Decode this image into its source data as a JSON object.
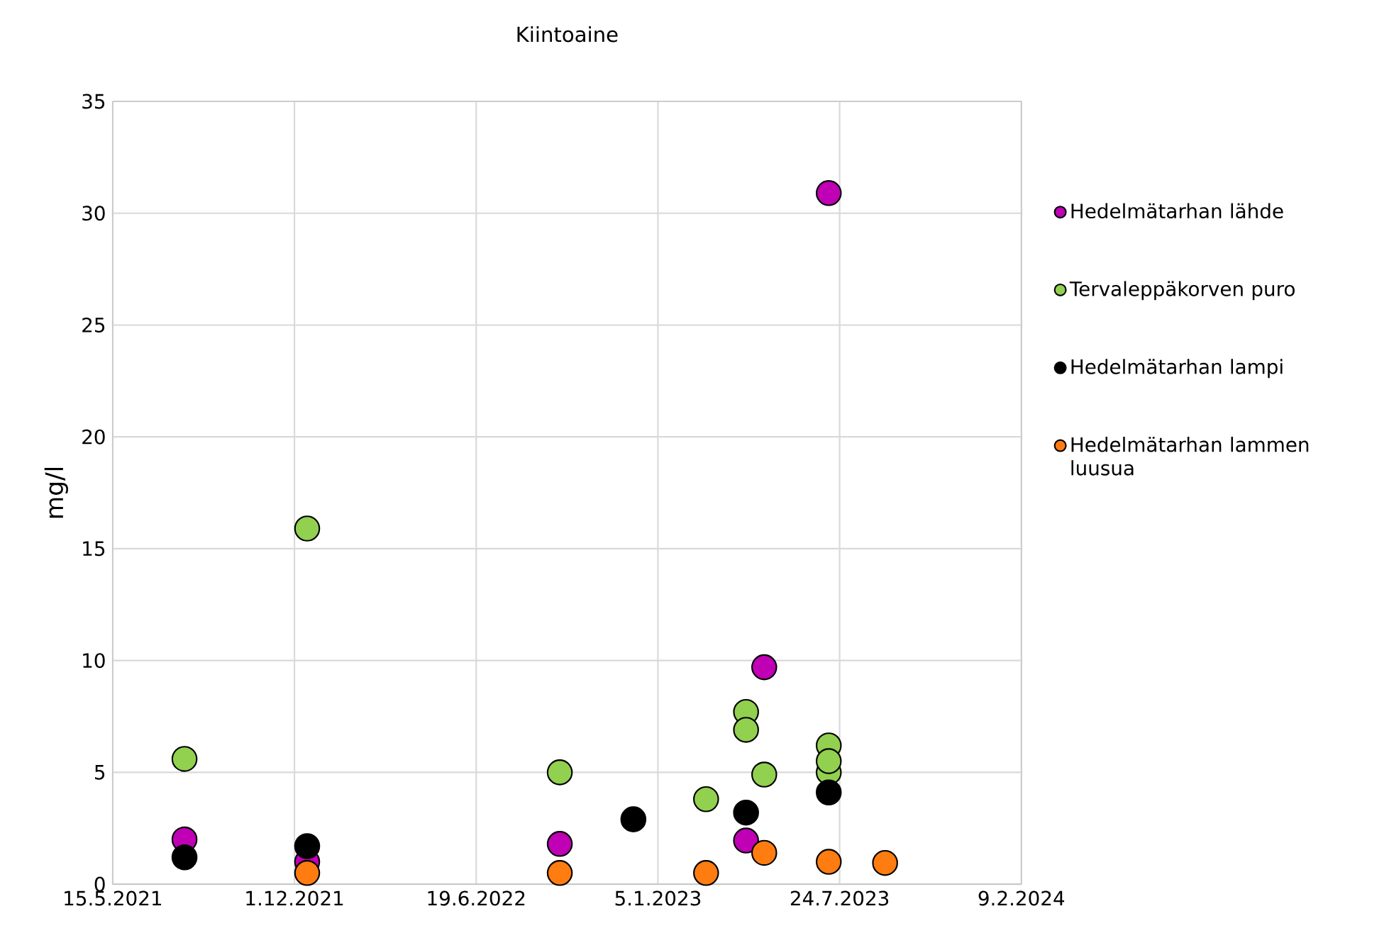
{
  "chart_data": {
    "type": "scatter",
    "title": "Kiintoaine",
    "ylabel": "mg/l",
    "xlim": [
      "2021-05-15",
      "2024-02-09"
    ],
    "xticks": [
      {
        "value": "2021-05-15",
        "label": "15.5.2021"
      },
      {
        "value": "2021-12-01",
        "label": "1.12.2021"
      },
      {
        "value": "2022-06-19",
        "label": "19.6.2022"
      },
      {
        "value": "2023-01-05",
        "label": "5.1.2023"
      },
      {
        "value": "2023-07-24",
        "label": "24.7.2023"
      },
      {
        "value": "2024-02-09",
        "label": "9.2.2024"
      }
    ],
    "ylim": [
      0,
      35
    ],
    "yticks": [
      0,
      5,
      10,
      15,
      20,
      25,
      30,
      35
    ],
    "grid": true,
    "legend": "right",
    "marker": "circle",
    "series": [
      {
        "name": "Hedelmätarhan lähde",
        "color": "#c000b4",
        "x": [
          "2021-08-02",
          "2021-12-15",
          "2022-09-19",
          "2023-04-12",
          "2023-05-02",
          "2023-07-12"
        ],
        "values": [
          2.0,
          1.0,
          1.8,
          1.95,
          9.7,
          30.9
        ]
      },
      {
        "name": "Tervaleppäkorven puro",
        "color": "#92d050",
        "x": [
          "2021-08-02",
          "2021-12-15",
          "2022-09-19",
          "2023-02-27",
          "2023-04-12",
          "2023-04-12",
          "2023-05-02",
          "2023-07-12",
          "2023-07-12",
          "2023-07-12"
        ],
        "values": [
          5.6,
          15.9,
          5.0,
          3.8,
          7.7,
          6.9,
          4.9,
          6.2,
          5.0,
          5.5
        ]
      },
      {
        "name": "Hedelmätarhan lampi",
        "color": "#000000",
        "x": [
          "2021-08-02",
          "2021-12-15",
          "2022-12-09",
          "2023-04-12",
          "2023-07-12"
        ],
        "values": [
          1.2,
          1.7,
          2.9,
          3.2,
          4.1
        ]
      },
      {
        "name": "Hedelmätarhan lammen luusua",
        "color": "#ff7c10",
        "x": [
          "2021-12-15",
          "2022-09-19",
          "2023-02-27",
          "2023-05-02",
          "2023-07-12",
          "2023-09-12"
        ],
        "values": [
          0.5,
          0.5,
          0.5,
          1.4,
          1.0,
          0.95
        ]
      }
    ]
  }
}
